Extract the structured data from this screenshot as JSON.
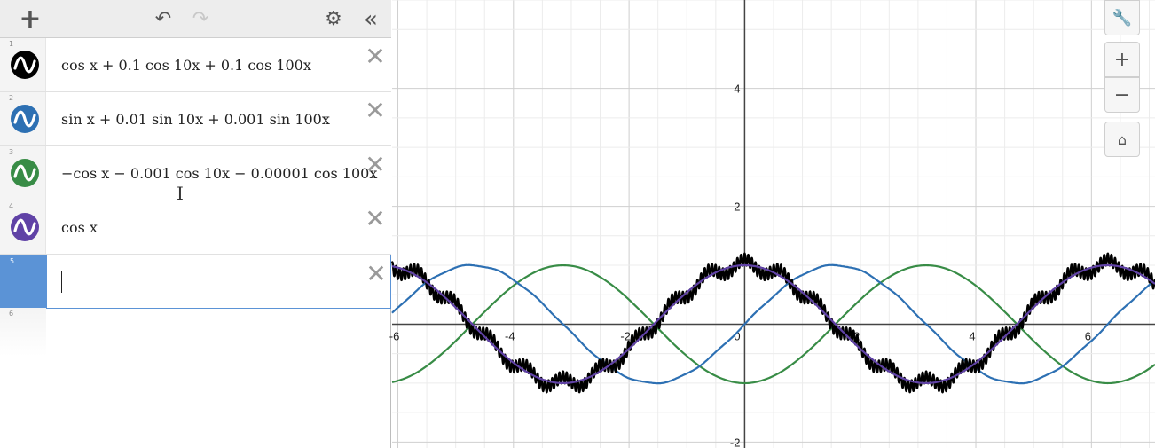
{
  "toolbar": {
    "add_icon": "+",
    "undo_icon": "↶",
    "redo_icon": "↷",
    "settings_icon": "⚙",
    "collapse_icon": "«"
  },
  "expressions": [
    {
      "index": "1",
      "text": "cos x + 0.1 cos 10x + 0.1 cos 100x",
      "color": "#000000",
      "icon": "wave-icon"
    },
    {
      "index": "2",
      "text": "sin x + 0.01 sin 10x + 0.001 sin 100x",
      "color": "#2d70b3",
      "icon": "wave-icon"
    },
    {
      "index": "3",
      "text": "−cos x − 0.001 cos 10x − 0.00001 cos 100x",
      "color": "#388c46",
      "icon": "wave-icon"
    },
    {
      "index": "4",
      "text": "cos x",
      "color": "#6042a6",
      "icon": "wave-icon"
    },
    {
      "index": "5",
      "text": "",
      "color": "#5b93d6",
      "icon": ""
    }
  ],
  "next_index": "6",
  "delete_icon": "✕",
  "graph_controls": {
    "wrench_icon": "🔧",
    "zoom_in_icon": "+",
    "zoom_out_icon": "−",
    "home_icon": "⌂"
  },
  "axes": {
    "xmin": -6.1,
    "xmax": 7.1,
    "ymin": -2.1,
    "ymax": 5.5,
    "x_ticks": [
      "-6",
      "-4",
      "-2",
      "0",
      "2",
      "4",
      "6"
    ],
    "y_ticks": [
      "4",
      "2",
      "-2"
    ],
    "grid": true
  }
}
